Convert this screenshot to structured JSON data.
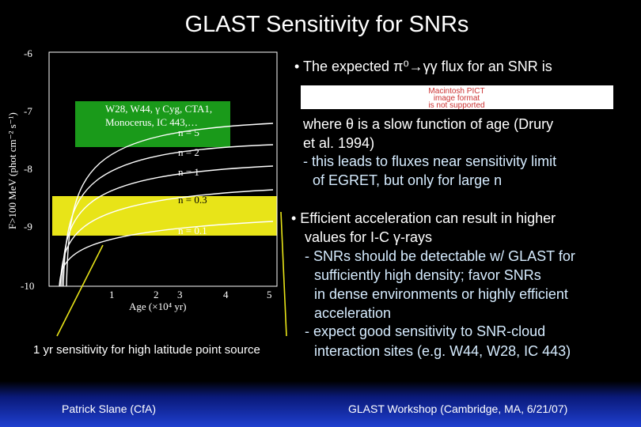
{
  "title": "GLAST Sensitivity for SNRs",
  "plot": {
    "y_label": "F>100 MeV (phot cm⁻² s⁻¹)",
    "y_ticks": [
      "-6",
      "-7",
      "-8",
      "-9",
      "-10"
    ],
    "x_ticks": [
      "1",
      "2",
      "3",
      "4",
      "5"
    ],
    "x_label": "Age (×10⁴ yr)",
    "curve_labels": [
      "n = 5",
      "n = 2",
      "n = 1",
      "n = 0.3",
      "n = 0.1"
    ],
    "source_box": [
      "W28, W44, γ Cyg, CTA1,",
      "Monocerus, IC 443,…"
    ]
  },
  "sensitivity_caption": "1 yr sensitivity for high latitude point source",
  "image_placeholder": [
    "Macintosh PICT",
    "image format",
    "is not supported"
  ],
  "text_lines": [
    "• The expected π⁰→γγ flux for an SNR is",
    "where θ is a slow function of age (Drury",
    "et al. 1994)",
    "- this leads to fluxes near sensitivity limit",
    "of EGRET, but only for large n",
    "• Efficient acceleration can result in higher",
    "values for I-C γ-rays",
    "- SNRs should be detectable w/ GLAST for",
    "sufficiently high density; favor SNRs",
    "in dense environments or highly efficient",
    "acceleration",
    "- expect good sensitivity to SNR-cloud",
    "interaction sites (e.g. W44, W28, IC 443)"
  ],
  "footer": {
    "left": "Patrick Slane (CfA)",
    "right": "GLAST Workshop (Cambridge, MA, 6/21/07)"
  }
}
